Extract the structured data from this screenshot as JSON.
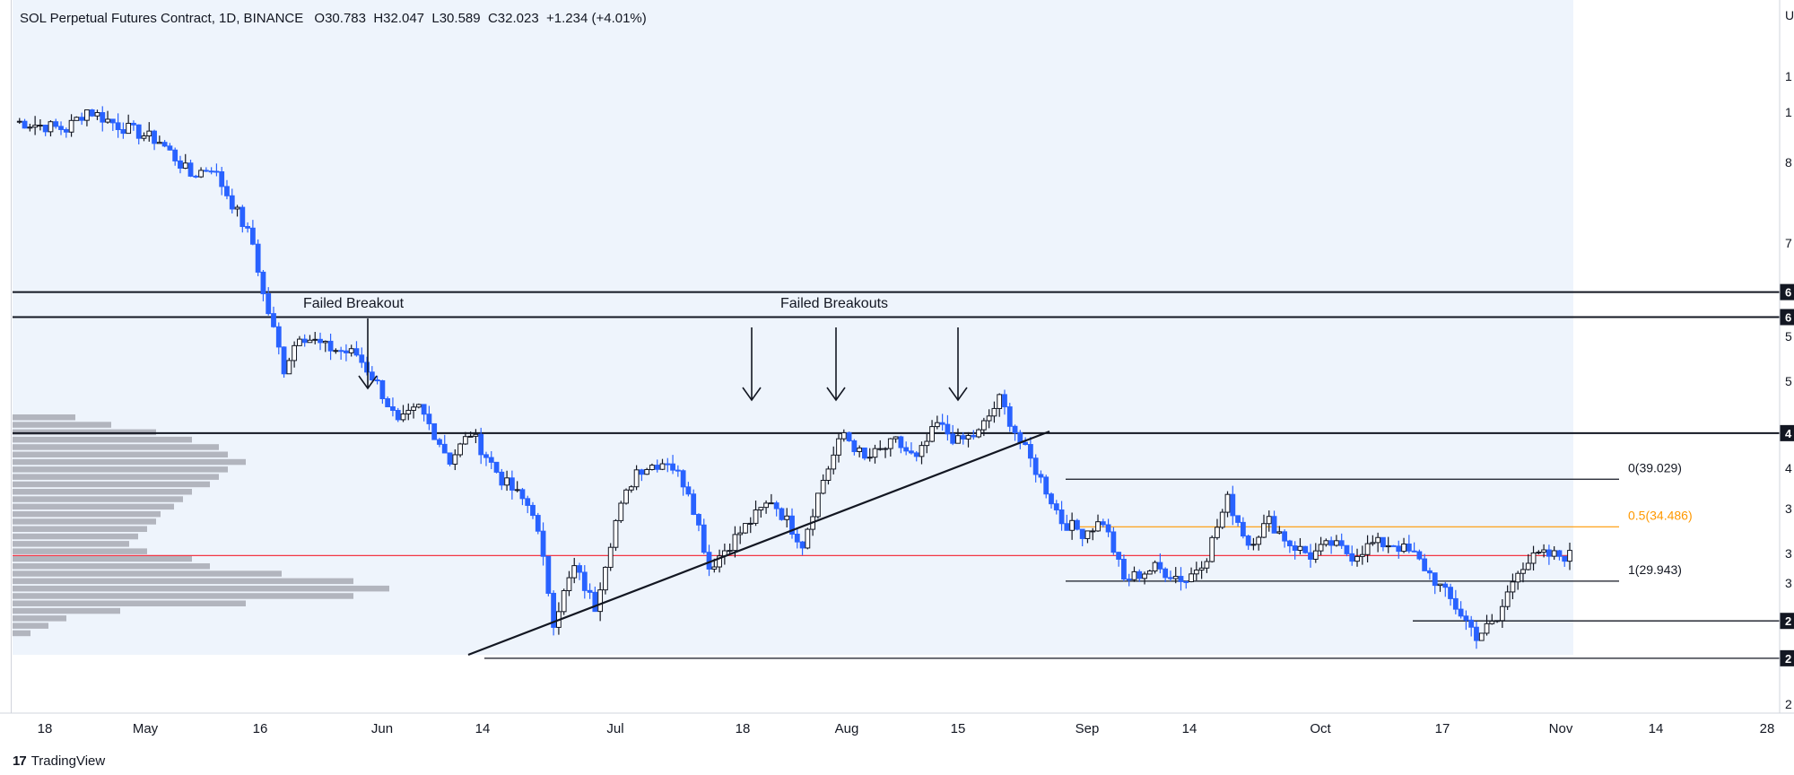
{
  "legend": {
    "symbol": "SOL Perpetual Futures Contract, 1D, BINANCE",
    "open": "O30.783",
    "high": "H32.047",
    "low": "L30.589",
    "close": "C32.023",
    "change": "+1.234 (+4.01%)"
  },
  "brand": "TradingView",
  "colors": {
    "up": "#ffffff",
    "down": "#2962ff",
    "wick": "#131722",
    "red_line": "#f23645",
    "orange_line": "#ff9800",
    "shading": "#eef4fc",
    "profile": "#b2b5be"
  },
  "chart_data": {
    "type": "candlestick",
    "timeframe": "1D",
    "x_ticks": [
      "18",
      "May",
      "16",
      "Jun",
      "14",
      "Jul",
      "18",
      "Aug",
      "15",
      "Sep",
      "14",
      "Oct",
      "17",
      "Nov",
      "14",
      "28"
    ],
    "y_range": [
      22,
      118
    ],
    "annotations": [
      {
        "text": "Failed Breakout"
      },
      {
        "text": "Failed Breakouts"
      }
    ],
    "fib": [
      {
        "label": "0(39.029)",
        "value": 39.029
      },
      {
        "label": "0.5(34.486)",
        "value": 34.486
      },
      {
        "label": "1(29.943)",
        "value": 29.943
      }
    ],
    "levels": [
      {
        "value": 63.5,
        "label": "6"
      },
      {
        "value": 59.5,
        "label": "6"
      },
      {
        "value": 44.0,
        "label": "4"
      },
      {
        "value": 27.0,
        "label": "2"
      },
      {
        "value": 24.5,
        "label": "2"
      }
    ],
    "red_level": 32.0,
    "right_axis_labels": [
      "1",
      "1",
      "8",
      "7",
      "5",
      "5",
      "4",
      "3",
      "3",
      "3",
      "2"
    ],
    "anchors": [
      [
        0,
        99
      ],
      [
        10,
        97
      ],
      [
        14,
        102
      ],
      [
        20,
        98
      ],
      [
        28,
        94
      ],
      [
        34,
        86
      ],
      [
        38,
        88
      ],
      [
        42,
        80
      ],
      [
        46,
        72
      ],
      [
        48,
        63
      ],
      [
        52,
        52
      ],
      [
        55,
        57
      ],
      [
        60,
        55
      ],
      [
        66,
        54
      ],
      [
        70,
        50
      ],
      [
        74,
        45
      ],
      [
        78,
        47
      ],
      [
        84,
        41
      ],
      [
        88,
        44
      ],
      [
        94,
        39
      ],
      [
        100,
        36
      ],
      [
        104,
        27
      ],
      [
        108,
        31
      ],
      [
        112,
        28
      ],
      [
        116,
        35
      ],
      [
        120,
        40
      ],
      [
        126,
        41
      ],
      [
        130,
        38
      ],
      [
        134,
        31
      ],
      [
        138,
        33
      ],
      [
        146,
        37
      ],
      [
        152,
        33
      ],
      [
        156,
        39
      ],
      [
        160,
        44
      ],
      [
        164,
        41
      ],
      [
        170,
        43
      ],
      [
        174,
        41
      ],
      [
        178,
        45
      ],
      [
        182,
        43
      ],
      [
        186,
        44
      ],
      [
        190,
        48
      ],
      [
        194,
        43
      ],
      [
        198,
        39
      ],
      [
        202,
        35
      ],
      [
        206,
        34
      ],
      [
        210,
        35
      ],
      [
        214,
        30
      ],
      [
        220,
        31
      ],
      [
        226,
        30
      ],
      [
        230,
        32
      ],
      [
        234,
        37
      ],
      [
        238,
        33
      ],
      [
        242,
        35
      ],
      [
        246,
        33
      ],
      [
        250,
        32
      ],
      [
        254,
        33
      ],
      [
        258,
        32
      ],
      [
        262,
        33
      ],
      [
        266,
        33
      ],
      [
        270,
        32
      ],
      [
        274,
        30
      ],
      [
        278,
        28
      ],
      [
        282,
        26
      ],
      [
        286,
        27
      ],
      [
        290,
        31
      ],
      [
        294,
        32
      ],
      [
        298,
        32
      ],
      [
        300,
        32
      ]
    ]
  }
}
